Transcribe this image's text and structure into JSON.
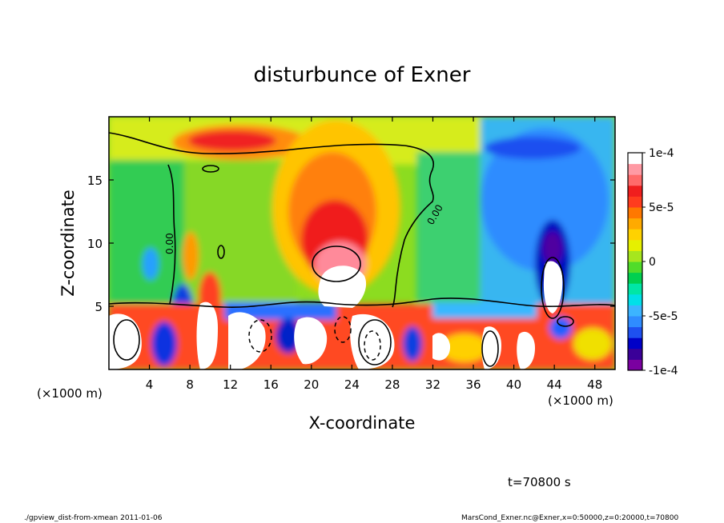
{
  "chart_data": {
    "type": "heatmap",
    "title": "disturbunce of Exner",
    "xlabel": "X-coordinate",
    "ylabel": "Z-coordinate",
    "x_unit_left": "(×1000 m)",
    "x_unit_right": "(×1000 m)",
    "xlim": [
      0,
      50
    ],
    "ylim": [
      0,
      20
    ],
    "x_ticks": [
      "4",
      "8",
      "12",
      "16",
      "20",
      "24",
      "28",
      "32",
      "36",
      "40",
      "44",
      "48"
    ],
    "x_tick_values": [
      4,
      8,
      12,
      16,
      20,
      24,
      28,
      32,
      36,
      40,
      44,
      48
    ],
    "y_ticks": [
      "5",
      "10",
      "15"
    ],
    "y_tick_values": [
      5,
      10,
      15
    ],
    "contour_label": "0.00",
    "colorbar": {
      "labels": [
        "1e-4",
        "5e-5",
        "0",
        "-5e-5",
        "-1e-4"
      ],
      "values": [
        0.0001,
        5e-05,
        0,
        -5e-05,
        -0.0001
      ],
      "range": [
        -0.0001,
        0.0001
      ],
      "colors": [
        "#7a00a0",
        "#3a0098",
        "#0000c8",
        "#1e50f0",
        "#2f8cff",
        "#3cb4ff",
        "#00e0e8",
        "#00e6a6",
        "#00d050",
        "#50dc2a",
        "#a6e61e",
        "#e6f000",
        "#ffd200",
        "#ffaa00",
        "#ff7800",
        "#ff3c1e",
        "#f01e1e",
        "#ff6a6a",
        "#ff9aa4",
        "#ffffff"
      ]
    },
    "features": [
      {
        "name": "upper-positive-band",
        "x": 12,
        "z": 18.2,
        "value": 8e-05
      },
      {
        "name": "central-positive-plume",
        "x": 22,
        "z": 9.5,
        "value": 9e-05
      },
      {
        "name": "central-core",
        "x": 23,
        "z": 7,
        "value": 0.00012
      },
      {
        "name": "right-negative-column",
        "x": 44,
        "z": 10,
        "value": -9e-05
      },
      {
        "name": "right-core",
        "x": 44,
        "z": 7,
        "value": -0.00012
      },
      {
        "name": "upper-right-negative",
        "x": 43,
        "z": 17.5,
        "value": -8e-05
      },
      {
        "name": "left-column",
        "x": 7.5,
        "z": 6,
        "value": -6e-05
      },
      {
        "name": "left-core-1",
        "x": 1.2,
        "z": 2.5,
        "value": 0.00012
      },
      {
        "name": "left-core-2",
        "x": 10,
        "z": 2.5,
        "value": 0.00012
      },
      {
        "name": "center-core",
        "x": 26,
        "z": 2.2,
        "value": 0.00012
      }
    ]
  },
  "annotations": {
    "time_label": "t=70800 s",
    "footer_left": "./gpview_dist-from-xmean  2011-01-06",
    "footer_right": "MarsCond_Exner.nc@Exner,x=0:50000,z=0:20000,t=70800"
  }
}
